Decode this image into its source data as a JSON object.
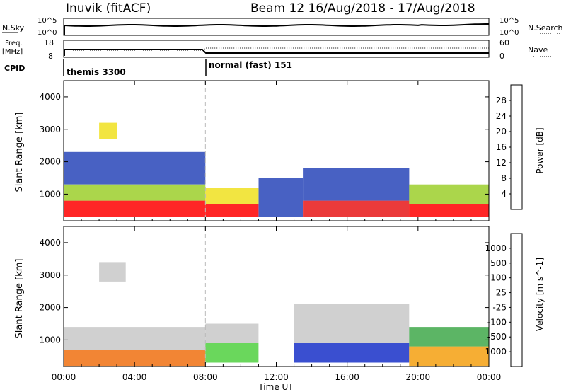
{
  "header": {
    "station": "Inuvik (fitACF)",
    "beam_info": "Beam 12 16/Aug/2018 - 17/Aug/2018"
  },
  "side_labels": {
    "nsky": "N.Sky",
    "freq_line1": "Freq.",
    "freq_line2": "[MHz]",
    "cpid": "CPID",
    "nsearch": "N.Search",
    "nave": "Nave"
  },
  "panel_ticks": {
    "nsky_left": [
      "10^5",
      "10^0"
    ],
    "nsky_right": [
      "10^5",
      "10^0"
    ],
    "freq_left": [
      "18",
      "8"
    ],
    "nave_right": [
      "60",
      "0"
    ]
  },
  "cpid_modes": [
    {
      "label": "themis 3300",
      "start_hour": 0,
      "end_hour": 8
    },
    {
      "label": "normal (fast) 151",
      "start_hour": 8,
      "end_hour": 24
    }
  ],
  "chart_data": [
    {
      "type": "heatmap",
      "name": "power",
      "ylabel": "Slant Range [km]",
      "xlabel": "Time UT",
      "xlim": [
        0,
        24
      ],
      "ylim": [
        180,
        4500
      ],
      "x_ticks": [
        "00:00",
        "04:00",
        "08:00",
        "12:00",
        "16:00",
        "20:00",
        "00:00"
      ],
      "y_ticks": [
        1000,
        2000,
        3000,
        4000
      ],
      "colorbar": {
        "label": "Power [dB]",
        "ticks": [
          "4",
          "8",
          "12",
          "16",
          "20",
          "24",
          "28"
        ],
        "colors": [
          "#1010ff",
          "#2845b8",
          "#2f7d6e",
          "#4aa84a",
          "#9ccf2c",
          "#f0e020",
          "#f5a010",
          "#f06010",
          "#e81818",
          "#ff0000"
        ]
      },
      "regions": [
        {
          "t0": 0.0,
          "t1": 8.0,
          "r0": 300,
          "r1": 800,
          "level": 9
        },
        {
          "t0": 0.0,
          "t1": 8.0,
          "r0": 800,
          "r1": 1300,
          "level": 4
        },
        {
          "t0": 0.0,
          "t1": 8.0,
          "r0": 1300,
          "r1": 2300,
          "level": 1
        },
        {
          "t0": 2.0,
          "t1": 3.0,
          "r0": 2700,
          "r1": 3200,
          "level": 5
        },
        {
          "t0": 8.0,
          "t1": 11.0,
          "r0": 300,
          "r1": 700,
          "level": 9
        },
        {
          "t0": 8.0,
          "t1": 11.0,
          "r0": 700,
          "r1": 1200,
          "level": 5
        },
        {
          "t0": 11.0,
          "t1": 13.5,
          "r0": 300,
          "r1": 1500,
          "level": 1
        },
        {
          "t0": 13.5,
          "t1": 19.5,
          "r0": 300,
          "r1": 800,
          "level": 8
        },
        {
          "t0": 13.5,
          "t1": 19.5,
          "r0": 800,
          "r1": 1800,
          "level": 1
        },
        {
          "t0": 19.5,
          "t1": 24.0,
          "r0": 300,
          "r1": 700,
          "level": 9
        },
        {
          "t0": 19.5,
          "t1": 24.0,
          "r0": 700,
          "r1": 1300,
          "level": 4
        }
      ]
    },
    {
      "type": "heatmap",
      "name": "velocity",
      "ylabel": "Slant Range [km]",
      "xlabel": "Time UT",
      "xlim": [
        0,
        24
      ],
      "ylim": [
        180,
        4500
      ],
      "x_ticks": [
        "00:00",
        "04:00",
        "08:00",
        "12:00",
        "16:00",
        "20:00",
        "00:00"
      ],
      "y_ticks": [
        1000,
        2000,
        3000,
        4000
      ],
      "colorbar": {
        "label": "Velocity [m s^-1]",
        "ticks": [
          "1000",
          "500",
          "100",
          "25",
          "-25",
          "-100",
          "-500",
          "-1000"
        ],
        "colors": [
          "#1830c8",
          "#285ab4",
          "#2f7d4e",
          "#3fa84a",
          "#50d040",
          "#c8c8c8",
          "#f0c018",
          "#f5a010",
          "#f07010",
          "#f03c10",
          "#ff0000"
        ]
      },
      "regions": [
        {
          "t0": 0.0,
          "t1": 8.0,
          "r0": 200,
          "r1": 700,
          "level": 8
        },
        {
          "t0": 0.0,
          "t1": 8.0,
          "r0": 700,
          "r1": 1400,
          "level": 5
        },
        {
          "t0": 2.0,
          "t1": 3.5,
          "r0": 2800,
          "r1": 3400,
          "level": 5
        },
        {
          "t0": 8.0,
          "t1": 11.0,
          "r0": 300,
          "r1": 900,
          "level": 4
        },
        {
          "t0": 8.0,
          "t1": 11.0,
          "r0": 900,
          "r1": 1500,
          "level": 5
        },
        {
          "t0": 13.0,
          "t1": 19.5,
          "r0": 300,
          "r1": 900,
          "level": 0
        },
        {
          "t0": 13.0,
          "t1": 19.5,
          "r0": 900,
          "r1": 2100,
          "level": 5
        },
        {
          "t0": 19.5,
          "t1": 24.0,
          "r0": 200,
          "r1": 800,
          "level": 7
        },
        {
          "t0": 19.5,
          "t1": 24.0,
          "r0": 800,
          "r1": 1400,
          "level": 3
        }
      ]
    }
  ]
}
